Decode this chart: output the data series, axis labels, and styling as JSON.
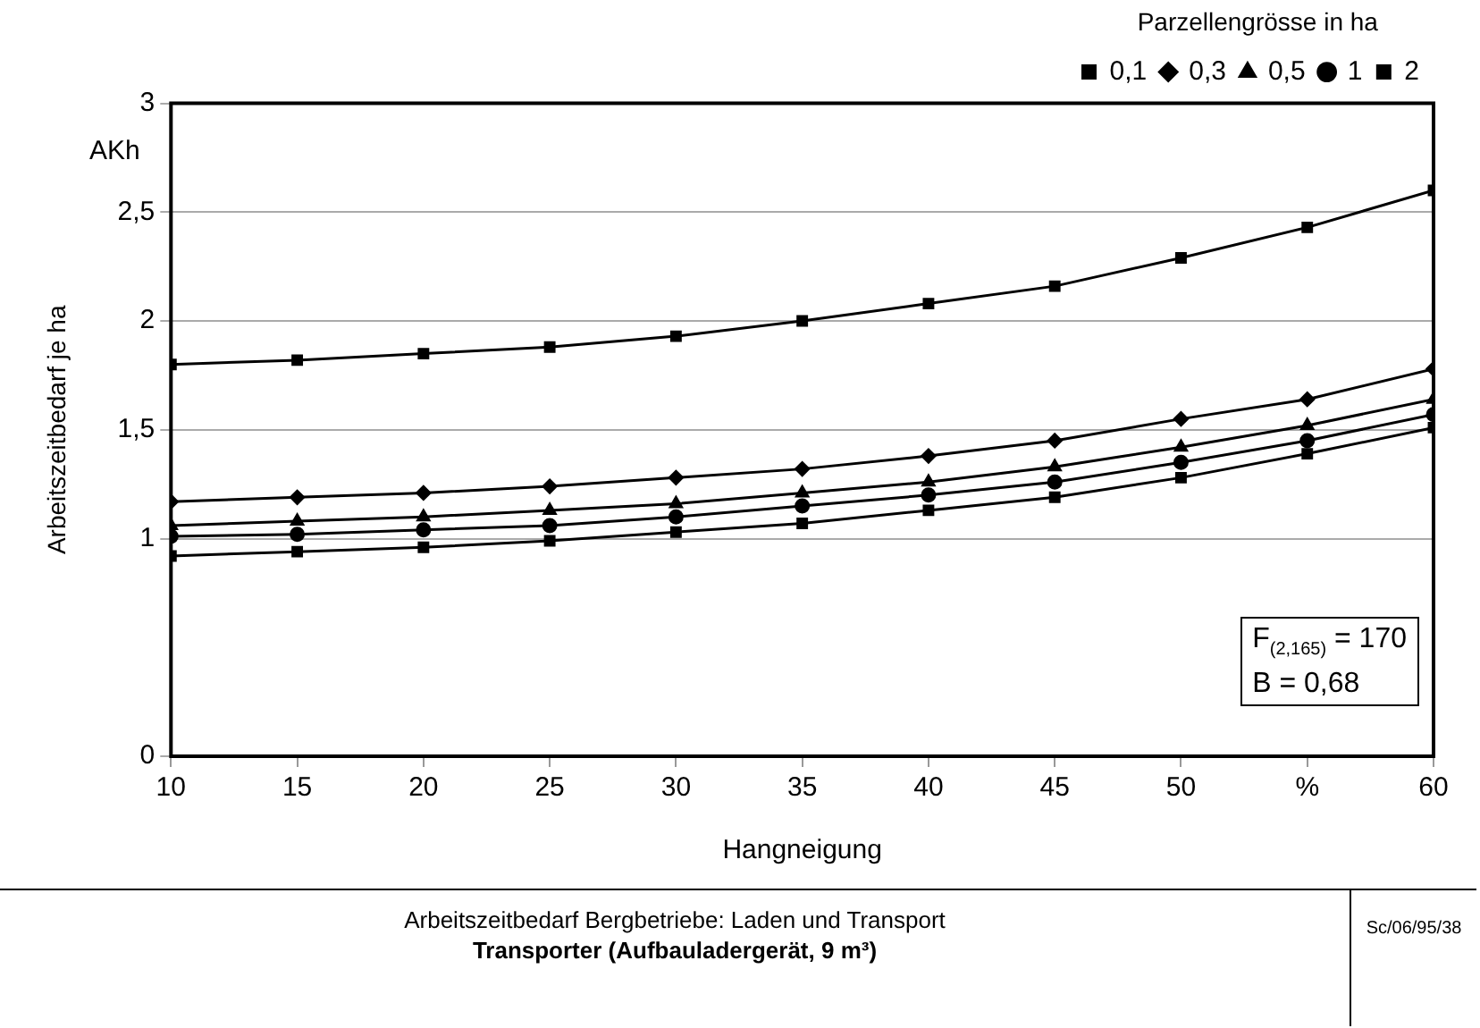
{
  "chart_data": {
    "type": "line",
    "title": "Arbeitszeitbedarf Bergbetriebe: Laden und Transport",
    "subtitle": "Transporter (Aufbauladergerät, 9 m³)",
    "xlabel": "Hangneigung",
    "ylabel": "Arbeitszeitbedarf je ha",
    "legend_title": "Parzellengrösse in ha",
    "x": [
      10,
      15,
      20,
      25,
      30,
      35,
      40,
      45,
      50,
      55,
      60
    ],
    "series": [
      {
        "name": "0,1",
        "color": "#000000",
        "marker": "square",
        "values": [
          1.8,
          1.82,
          1.85,
          1.88,
          1.93,
          2.0,
          2.08,
          2.16,
          2.29,
          2.43,
          2.6
        ]
      },
      {
        "name": "0,3",
        "color": "#000000",
        "marker": "diamond",
        "values": [
          1.17,
          1.19,
          1.21,
          1.24,
          1.28,
          1.32,
          1.38,
          1.45,
          1.55,
          1.64,
          1.78
        ]
      },
      {
        "name": "0,5",
        "color": "#000000",
        "marker": "triangle",
        "values": [
          1.06,
          1.08,
          1.1,
          1.13,
          1.16,
          1.21,
          1.26,
          1.33,
          1.42,
          1.52,
          1.64
        ]
      },
      {
        "name": "1",
        "color": "#000000",
        "marker": "circle",
        "values": [
          1.01,
          1.02,
          1.04,
          1.06,
          1.1,
          1.15,
          1.2,
          1.26,
          1.35,
          1.45,
          1.57
        ]
      },
      {
        "name": "2",
        "color": "#000000",
        "marker": "square",
        "values": [
          0.92,
          0.94,
          0.96,
          0.99,
          1.03,
          1.07,
          1.13,
          1.19,
          1.28,
          1.39,
          1.51
        ]
      }
    ],
    "xlim": [
      10,
      60
    ],
    "xticks": [
      10,
      15,
      20,
      25,
      30,
      35,
      40,
      45,
      50,
      {
        "value": 55,
        "label": "%"
      },
      60
    ],
    "ylim": [
      0,
      3
    ],
    "yticks": [
      0,
      1,
      {
        "value": 1.5,
        "label": "1,5"
      },
      2,
      {
        "value": 2.5,
        "label": "2,5"
      },
      3
    ],
    "grid": "y",
    "legend": "top right",
    "line_style": "solid",
    "annotations": [
      "AKh",
      "F$_{(2,165)}$ = 170",
      "B = 0,68",
      "Sc/06/95/38"
    ]
  }
}
